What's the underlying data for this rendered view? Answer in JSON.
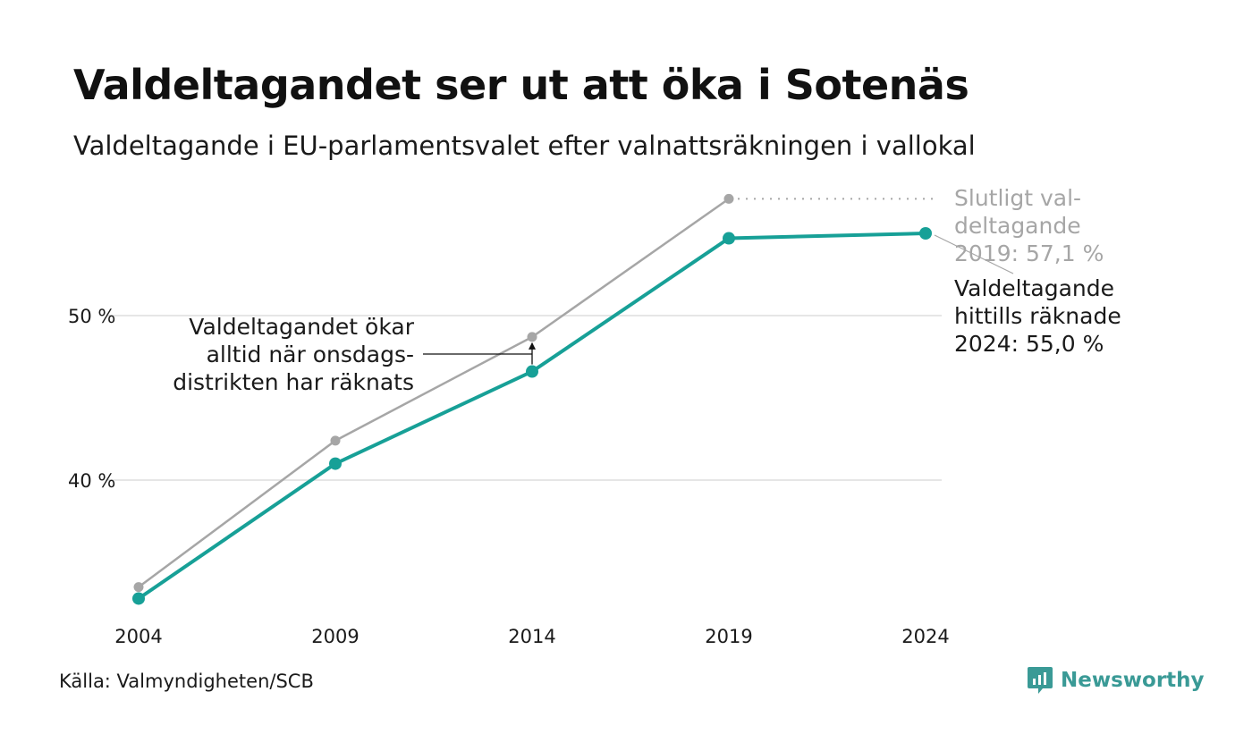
{
  "title": "Valdeltagandet ser ut att öka i Sotenäs",
  "subtitle": "Valdeltagande i EU-parlamentsvalet efter valnattsräkningen i vallokal",
  "source": "Källa: Valmyndigheten/SCB",
  "brand": "Newsworthy",
  "colors": {
    "current": "#17a097",
    "final": "#a6a6a6",
    "grid": "#e6e6e6",
    "text": "#1a1a1a",
    "brand": "#3a9a96"
  },
  "chart_data": {
    "type": "line",
    "x": [
      2004,
      2009,
      2014,
      2019,
      2024
    ],
    "x_tick_labels": [
      "2004",
      "2009",
      "2014",
      "2019",
      "2024"
    ],
    "ylim": [
      32.5,
      58.5
    ],
    "y_ticks": [
      40,
      50
    ],
    "y_tick_labels": [
      "40 %",
      "50 %"
    ],
    "grid": true,
    "series": [
      {
        "key": "final",
        "values": [
          33.5,
          42.4,
          48.7,
          57.1,
          null
        ],
        "color": "#a6a6a6",
        "extend_dotted_to": 2024
      },
      {
        "key": "current",
        "values": [
          32.8,
          41.0,
          46.6,
          54.7,
          55.0
        ],
        "color": "#17a097"
      }
    ],
    "annotations": {
      "final_label": [
        "Slutligt val-",
        "deltagande",
        "2019: 57,1 %"
      ],
      "current_label": [
        "Valdeltagande",
        "hittills räknade",
        "2024: 55,0 %"
      ],
      "note": [
        "Valdeltagandet ökar",
        "alltid när onsdags-",
        "distrikten har räknats"
      ]
    }
  }
}
